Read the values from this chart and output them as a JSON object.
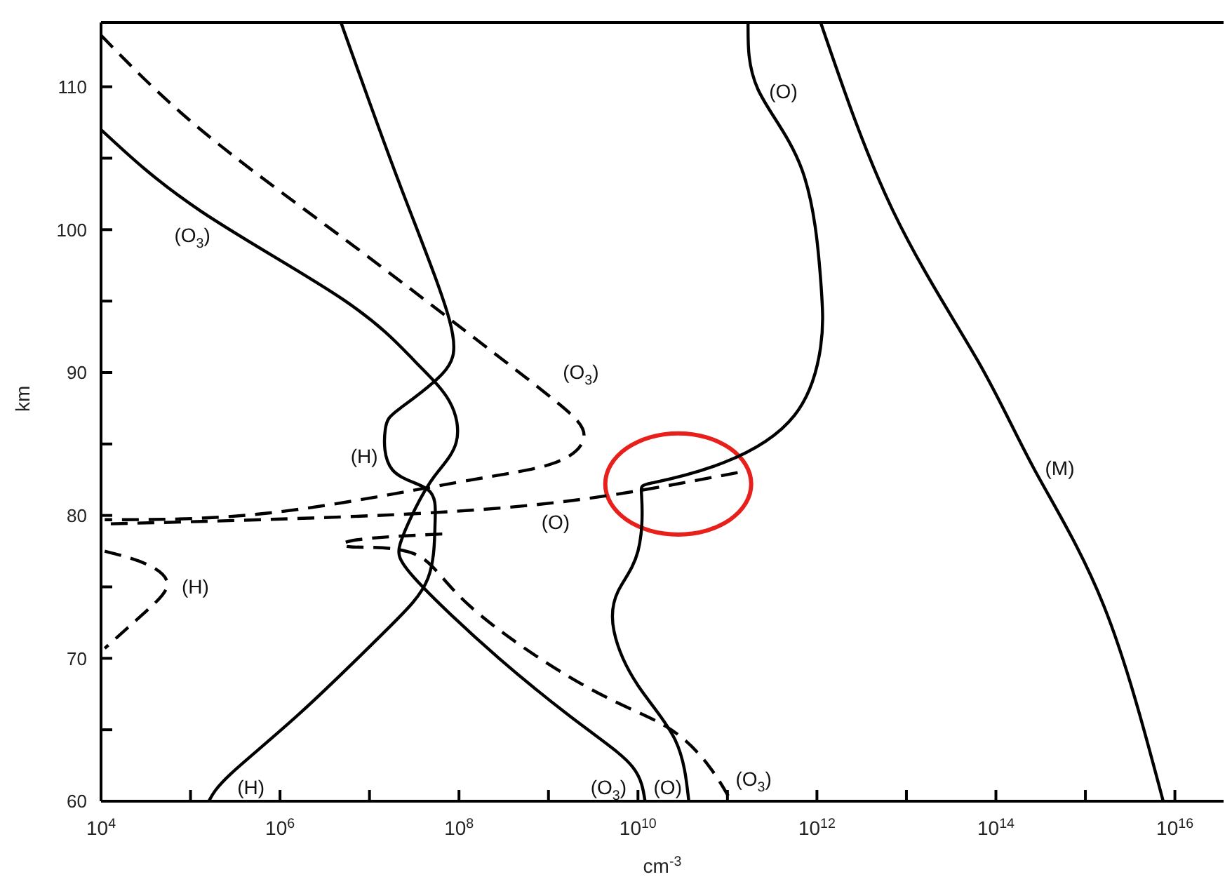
{
  "chart_data": {
    "type": "line",
    "xlabel": "cm$^{-3}$",
    "ylabel": "km",
    "log": "x",
    "marker": "none",
    "xlim": [
      10000,
      3.5e+16
    ],
    "ylim": [
      60,
      114.5
    ],
    "xticks": [
      {
        "value": 10000,
        "label": "10$^{4}$"
      },
      {
        "value": 100000,
        "label": null
      },
      {
        "value": 1000000,
        "label": "10$^{6}$"
      },
      {
        "value": 10000000,
        "label": null
      },
      {
        "value": 100000000,
        "label": "10$^{8}$"
      },
      {
        "value": 1000000000,
        "label": null
      },
      {
        "value": 10000000000,
        "label": "10$^{10}$"
      },
      {
        "value": 100000000000,
        "label": null
      },
      {
        "value": 1000000000000,
        "label": "10$^{12}$"
      },
      {
        "value": 10000000000000,
        "label": null
      },
      {
        "value": 100000000000000,
        "label": "10$^{14}$"
      },
      {
        "value": 1000000000000000,
        "label": null
      },
      {
        "value": 10000000000000000,
        "label": "10$^{16}$"
      }
    ],
    "yticks": [
      60,
      {
        "value": 65,
        "label": null
      },
      70,
      {
        "value": 75,
        "label": null
      },
      80,
      {
        "value": 85,
        "label": null
      },
      90,
      {
        "value": 95,
        "label": null
      },
      100,
      {
        "value": 105,
        "label": null
      },
      110
    ],
    "series": [
      {
        "color": "#000000",
        "line_style": "solid",
        "x": [
          1100000000000.0,
          7100000000000.0,
          63000000000000.0,
          270000000000000.0,
          1600000000000000.0,
          7400000000000000.0
        ],
        "values": [
          114.5,
          101.3,
          90.8,
          83.2,
          73.7,
          60
        ]
      },
      {
        "color": "#000000",
        "line_style": "solid",
        "x": [
          170000000000.0,
          220000000000.0,
          680000000000.0,
          1100000000000.0,
          1100000000000.0,
          560000000000.0,
          91000000000.0,
          15000000000.0,
          11000000000.0,
          10000000000.0,
          6000000000.0,
          5400000000.0,
          10000000000.0,
          26000000000.0,
          37000000000.0
        ],
        "values": [
          114.5,
          109.8,
          104.2,
          96.5,
          91.8,
          87,
          83.7,
          82.3,
          81.3,
          77.5,
          74.7,
          71.9,
          68.1,
          64.3,
          60
        ]
      },
      {
        "color": "#000000",
        "line_style": "dashed",
        "x": [
          130000000000.0,
          1200000000.0,
          5100000.0,
          11000.0
        ],
        "values": [
          83,
          80.9,
          79.9,
          79.4
        ]
      },
      {
        "color": "#000000",
        "line_style": "solid",
        "x": [
          10000.0,
          130000.0,
          5100000.0,
          32000000.0,
          78000000.0,
          93000000.0,
          54000000.0,
          32000000.0,
          22000000.0,
          32000000.0,
          280000000.0,
          2500000000.0,
          8700000000.0,
          12000000000.0
        ],
        "values": [
          107,
          101.3,
          95.1,
          90.8,
          88,
          85.1,
          82.8,
          80.4,
          78,
          75.6,
          70,
          65.2,
          62.4,
          60
        ]
      },
      {
        "color": "#000000",
        "line_style": "solid",
        "x": [
          4800000.0,
          22000000.0,
          78000000.0,
          65000000.0,
          22000000.0,
          15000000.0,
          18000000.0,
          45000000.0,
          54000000.0,
          45000000.0,
          15000000.0,
          1700000.0,
          280000.0,
          160000.0
        ],
        "values": [
          114.5,
          103.1,
          93.7,
          89.9,
          87.5,
          86,
          83.2,
          81.8,
          79.4,
          75.6,
          71.9,
          66.2,
          61.9,
          60
        ]
      },
      {
        "color": "#000000",
        "line_style": "dashed",
        "x": [
          10000.0,
          130000.0,
          5100000.0,
          130000000.0,
          1200000000.0,
          2500000000.0,
          1200000000.0,
          93000000.0,
          830000.0,
          11000.0
        ],
        "values": [
          113.6,
          107,
          99.4,
          92.7,
          88,
          85.6,
          83.7,
          82.3,
          80.2,
          79.7
        ]
      },
      {
        "color": "#000000",
        "line_style": "dashed",
        "x": [
          65000000.0,
          7400000.0,
          6200000.0,
          32000000.0,
          130000000.0,
          2500000000.0,
          21000000000.0,
          63000000000.0,
          110000000000.0
        ],
        "values": [
          78.7,
          78.3,
          77.8,
          77.3,
          73.7,
          68.1,
          65.2,
          62.4,
          60
        ]
      },
      {
        "color": "#000000",
        "line_style": "dashed",
        "x": [
          11000.0,
          32000.0,
          55000.0,
          32000.0,
          11000.0
        ],
        "values": [
          77.5,
          76.6,
          75.2,
          73.3,
          70.7
        ]
      }
    ],
    "annotations": [
      {
        "text": "(O$_{3}$)",
        "x": 130000.0,
        "y": 101.3
      },
      {
        "text": "(O$_{3}$)",
        "x": 1200000000.0,
        "y": 88
      },
      {
        "text": "(H)",
        "x": 15000000.0,
        "y": 86
      },
      {
        "text": "(H)",
        "x": 55000.0,
        "y": 75.2
      },
      {
        "text": "(O)",
        "x": 1200000000.0,
        "y": 80.9
      },
      {
        "text": "(O)",
        "x": 220000000000.0,
        "y": 109.8
      },
      {
        "text": "(M)",
        "x": 270000000000000.0,
        "y": 83.2
      },
      {
        "text": "(H)",
        "x": 160000.0,
        "y": 60
      },
      {
        "text": "(O$_{3}$)",
        "x": 12000000000.0,
        "y": 60
      },
      {
        "text": "(O)",
        "x": 37000000000.0,
        "y": 60
      },
      {
        "text": "(O$_{3}$)",
        "x": 110000000000.0,
        "y": 60
      }
    ]
  }
}
